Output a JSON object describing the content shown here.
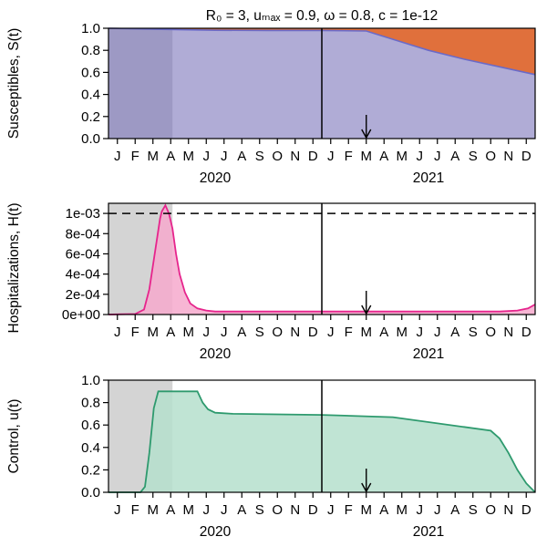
{
  "chart_data": [
    {
      "type": "area",
      "title": "R₀ = 3, uₘₐₓ = 0.9, ω = 0.8, c = 1e-12",
      "ylabel": "Susceptibles, S(t)",
      "ylim": [
        0,
        1
      ],
      "yticks": [
        "0.0",
        "0.2",
        "0.4",
        "0.6",
        "0.8",
        "1.0"
      ],
      "month_labels": [
        "J",
        "F",
        "M",
        "A",
        "M",
        "J",
        "J",
        "A",
        "S",
        "O",
        "N",
        "D",
        "J",
        "F",
        "M",
        "A",
        "M",
        "J",
        "J",
        "A",
        "S",
        "O",
        "N",
        "D"
      ],
      "year_labels": [
        "2020",
        "2021"
      ],
      "x_range_months": [
        0,
        24
      ],
      "divider_month": 12,
      "arrow_month": 14.5,
      "shaded_until_month": 3.6,
      "colors": {
        "susceptible": "#b0acd6",
        "susceptible_dark": "#9d99c4",
        "vaccinated": "#e0703c",
        "line": "#6a6ac8"
      },
      "series": [
        {
          "x": [
            0,
            3,
            6,
            9,
            12,
            14.5,
            16,
            18,
            20,
            22,
            24
          ],
          "values": [
            1.0,
            0.99,
            0.982,
            0.98,
            0.98,
            0.975,
            0.9,
            0.8,
            0.72,
            0.65,
            0.58
          ]
        }
      ]
    },
    {
      "type": "area",
      "ylabel": "Hospitalizations, H(t)",
      "ylim": [
        0,
        0.0011
      ],
      "yticks": [
        "0e+00",
        "2e-04",
        "4e-04",
        "6e-04",
        "8e-04",
        "1e-03"
      ],
      "ytick_values": [
        0,
        0.0002,
        0.0004,
        0.0006,
        0.0008,
        0.001
      ],
      "threshold": 0.001,
      "month_labels": [
        "J",
        "F",
        "M",
        "A",
        "M",
        "J",
        "J",
        "A",
        "S",
        "O",
        "N",
        "D",
        "J",
        "F",
        "M",
        "A",
        "M",
        "J",
        "J",
        "A",
        "S",
        "O",
        "N",
        "D"
      ],
      "year_labels": [
        "2020",
        "2021"
      ],
      "x_range_months": [
        0,
        24
      ],
      "divider_month": 12,
      "arrow_month": 14.5,
      "shaded_until_month": 3.6,
      "colors": {
        "fill": "#f6a9cc",
        "line": "#e6248c",
        "shade": "#d4d4d4"
      },
      "series": [
        {
          "x": [
            0,
            1.5,
            2.0,
            2.3,
            2.6,
            2.9,
            3.0,
            3.2,
            3.4,
            3.6,
            3.8,
            4.0,
            4.3,
            4.6,
            5.0,
            5.5,
            6.0,
            7.0,
            9.0,
            12.0,
            18.0,
            22.0,
            23.0,
            23.6,
            24.0
          ],
          "values": [
            0.0,
            5e-06,
            5e-05,
            0.00025,
            0.0006,
            0.00095,
            0.00102,
            0.00108,
            0.001,
            0.00085,
            0.0006,
            0.0004,
            0.00022,
            0.00011,
            6e-05,
            4e-05,
            3e-05,
            3e-05,
            3e-05,
            3e-05,
            3e-05,
            3e-05,
            4e-05,
            6e-05,
            0.0001
          ]
        }
      ]
    },
    {
      "type": "area",
      "ylabel": "Control, u(t)",
      "ylim": [
        0,
        1
      ],
      "yticks": [
        "0.0",
        "0.2",
        "0.4",
        "0.6",
        "0.8",
        "1.0"
      ],
      "month_labels": [
        "J",
        "F",
        "M",
        "A",
        "M",
        "J",
        "J",
        "A",
        "S",
        "O",
        "N",
        "D",
        "J",
        "F",
        "M",
        "A",
        "M",
        "J",
        "J",
        "A",
        "S",
        "O",
        "N",
        "D"
      ],
      "year_labels": [
        "2020",
        "2021"
      ],
      "x_range_months": [
        0,
        24
      ],
      "divider_month": 12,
      "arrow_month": 14.5,
      "shaded_until_month": 3.6,
      "colors": {
        "fill": "#b5dfcc",
        "line": "#2e9a6e",
        "shade": "#d4d4d4"
      },
      "series": [
        {
          "x": [
            0,
            1.8,
            2.05,
            2.3,
            2.55,
            2.8,
            3.3,
            5.0,
            5.3,
            5.6,
            6.0,
            7.0,
            12.0,
            16.0,
            21.5,
            22.0,
            22.5,
            23.0,
            23.5,
            24.0
          ],
          "values": [
            0.0,
            0.0,
            0.05,
            0.35,
            0.75,
            0.9,
            0.9,
            0.9,
            0.8,
            0.74,
            0.71,
            0.7,
            0.69,
            0.67,
            0.55,
            0.48,
            0.35,
            0.2,
            0.08,
            0.0
          ]
        }
      ]
    }
  ]
}
